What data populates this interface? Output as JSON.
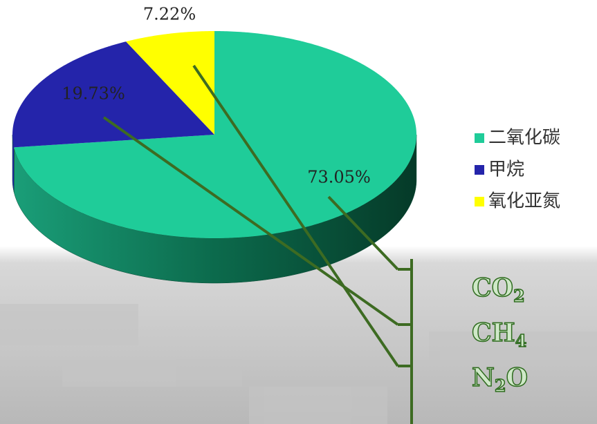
{
  "chart_data": {
    "type": "pie",
    "categories": [
      "二氧化碳",
      "甲烷",
      "氧化亚氮"
    ],
    "values": [
      73.05,
      19.73,
      7.22
    ],
    "value_labels": [
      "73.05%",
      "19.73%",
      "7.22%"
    ],
    "colors": [
      "#1fcc99",
      "#2424aa",
      "#ffff00"
    ],
    "legend": "right",
    "annotations": [
      [
        "CO",
        "2"
      ],
      [
        "CH",
        "4"
      ],
      [
        "N",
        "2",
        "O"
      ]
    ]
  }
}
